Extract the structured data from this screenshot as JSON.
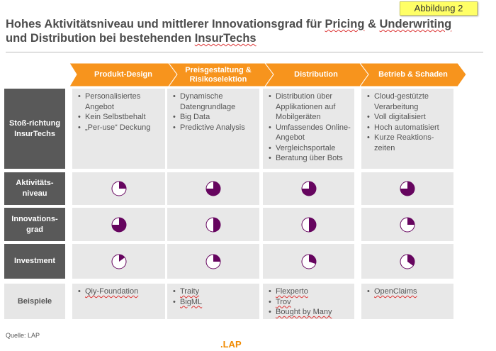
{
  "badge": "Abbildung 2",
  "title": {
    "line1_a": "Hohes Aktivitätsniveau und mittlerer Innovationsgrad für ",
    "line1_b": "Pricing",
    "line1_c": " & ",
    "line1_d": "Underwriting",
    "line2_a": "und Distribution bei bestehenden ",
    "line2_b": "InsurTechs"
  },
  "columns": [
    "Produkt-Design",
    "Preisgestaltung & Risikoselektion",
    "Distribution",
    "Betrieb & Schaden"
  ],
  "rows": {
    "stoss": {
      "label": "Stoß-richtung InsurTechs",
      "cells": [
        [
          "Personalisiertes Angebot",
          "Kein Selbstbehalt",
          "„Per-use“ Deckung"
        ],
        [
          "Dynamische Datengrundlage",
          "Big Data",
          "Predictive Analysis"
        ],
        [
          "Distribution über Applikationen auf Mobilgeräten",
          "Umfassendes Online-Angebot",
          "Vergleichsportale",
          "Beratung über Bots"
        ],
        [
          "Cloud-gestützte Verarbeitung",
          "Voll digitalisiert",
          "Hoch automatisiert",
          "Kurze Reaktions-zeiten"
        ]
      ]
    },
    "aktivitaet": {
      "label": "Aktivitäts-niveau",
      "values": [
        0.25,
        0.75,
        0.75,
        0.75
      ]
    },
    "innovation": {
      "label": "Innovations-grad",
      "values": [
        0.75,
        0.5,
        0.5,
        0.25
      ]
    },
    "investment": {
      "label": "Investment",
      "values": [
        0.15,
        0.25,
        0.3,
        0.35
      ]
    },
    "beispiele": {
      "label": "Beispiele",
      "cells": [
        [
          "Qiy-Foundation"
        ],
        [
          "Traity",
          "BigML"
        ],
        [
          "Flexperto",
          "Trov",
          "Bought by Many"
        ],
        [
          "OpenClaims"
        ]
      ]
    }
  },
  "colors": {
    "arrow": "#f7941d",
    "ball": "#66055f",
    "label_bg": "#595959",
    "cell_bg": "#e8e8e8"
  },
  "source": "Quelle: LAP",
  "logo": ".LAP"
}
